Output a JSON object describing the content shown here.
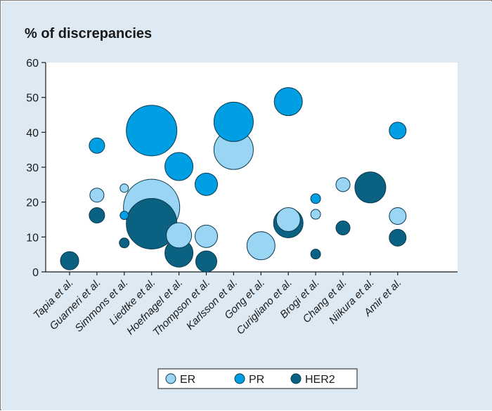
{
  "colors": {
    "background": "#ddeaf4",
    "plot_area": "#ffffff",
    "er": "#9ad6f4",
    "pr": "#009ee3",
    "her2": "#0b6181",
    "bubble_stroke": "#0a3a4f"
  },
  "chart_data": {
    "type": "bubble",
    "title": "% of discrepancies",
    "xlabel": "",
    "ylabel": "",
    "ylim": [
      0,
      60
    ],
    "yticks": [
      0,
      10,
      20,
      30,
      40,
      50,
      60
    ],
    "grid": false,
    "legend_position": "bottom-center",
    "categories": [
      "Tapia et al.",
      "Guarneri et al.",
      "Simmons et al.",
      "Liedtke et al.",
      "Hoefnagel et al.",
      "Thompson et al.",
      "Karlsson et al.",
      "Gong et al.",
      "Curigliano et al.",
      "Brogi et al.",
      "Chang et al.",
      "Niikura et al.",
      "Amir et al."
    ],
    "series": [
      {
        "name": "ER",
        "color_key": "er",
        "values": [
          null,
          22,
          24,
          18.5,
          10.5,
          10.2,
          35,
          7.5,
          15,
          16.5,
          25,
          null,
          16
        ],
        "sizes": [
          null,
          10,
          6,
          40,
          18,
          16,
          28,
          20,
          17,
          7,
          10,
          null,
          12
        ]
      },
      {
        "name": "PR",
        "color_key": "pr",
        "values": [
          null,
          36.2,
          16.2,
          40.5,
          30.2,
          25.1,
          43,
          null,
          48.8,
          21,
          null,
          null,
          40.5
        ],
        "sizes": [
          null,
          11,
          6,
          36,
          20,
          16,
          28,
          null,
          20,
          7,
          null,
          null,
          12
        ]
      },
      {
        "name": "HER2",
        "color_key": "her2",
        "values": [
          3.2,
          16.2,
          8.3,
          13.8,
          5.4,
          3,
          null,
          null,
          14,
          5.1,
          12.6,
          24.2,
          9.8
        ],
        "sizes": [
          13,
          11,
          7,
          36,
          20,
          15,
          null,
          null,
          21,
          7,
          10,
          22,
          12
        ]
      }
    ]
  }
}
